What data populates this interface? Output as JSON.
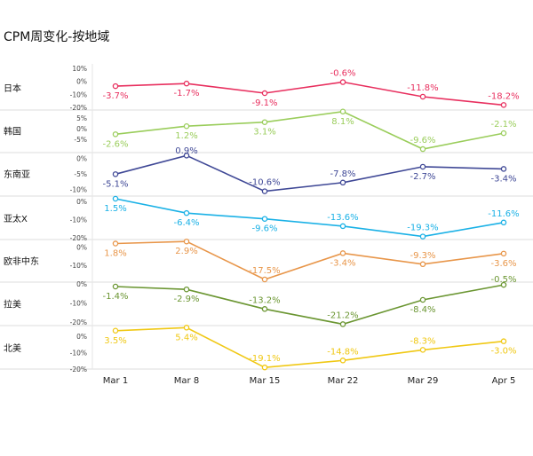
{
  "chart_data": {
    "type": "line",
    "title": "CPM周变化-按地域",
    "categories": [
      "Mar 1",
      "Mar 8",
      "Mar 15",
      "Mar 22",
      "Mar 29",
      "Apr 5"
    ],
    "series": [
      {
        "name": "日本",
        "color": "#e8305f",
        "values": [
          -3.7,
          -1.7,
          -9.1,
          -0.6,
          -11.8,
          -18.2
        ],
        "labels": [
          "-3.7%",
          "-1.7%",
          "-9.1%",
          "-0.6%",
          "-11.8%",
          "-18.2%"
        ],
        "y_ticks": [
          "10%",
          "0%",
          "-10%",
          "-20%"
        ],
        "ylim": [
          -20,
          10
        ],
        "tick_values": [
          10,
          0,
          -10,
          -20
        ]
      },
      {
        "name": "韩国",
        "color": "#9acd5b",
        "values": [
          -2.6,
          1.2,
          3.1,
          8.1,
          -9.6,
          -2.1
        ],
        "labels": [
          "-2.6%",
          "1.2%",
          "3.1%",
          "8.1%",
          "-9.6%",
          "-2.1%"
        ],
        "y_ticks": [
          "5%",
          "0%",
          "-5%"
        ],
        "ylim": [
          -10,
          8
        ],
        "tick_values": [
          5,
          0,
          -5
        ]
      },
      {
        "name": "东南亚",
        "color": "#3f4896",
        "values": [
          -5.1,
          0.9,
          -10.6,
          -7.8,
          -2.7,
          -3.4
        ],
        "labels": [
          "-5.1%",
          "0.9%",
          "-10.6%",
          "-7.8%",
          "-2.7%",
          "-3.4%"
        ],
        "y_ticks": [
          "0%",
          "-5%",
          "-10%"
        ],
        "ylim": [
          -11,
          1
        ],
        "tick_values": [
          0,
          -5,
          -10
        ]
      },
      {
        "name": "亚太X",
        "color": "#1ab1e6",
        "values": [
          1.5,
          -6.4,
          -9.6,
          -13.6,
          -19.3,
          -11.6
        ],
        "labels": [
          "1.5%",
          "-6.4%",
          "-9.6%",
          "-13.6%",
          "-19.3%",
          "-11.6%"
        ],
        "y_ticks": [
          "0%",
          "-10%",
          "-20%"
        ],
        "ylim": [
          -20,
          1.5
        ],
        "tick_values": [
          0,
          -10,
          -20
        ]
      },
      {
        "name": "欧非中东",
        "color": "#e8964a",
        "values": [
          1.8,
          2.9,
          -17.5,
          -3.4,
          -9.3,
          -3.6
        ],
        "labels": [
          "1.8%",
          "2.9%",
          "-17.5%",
          "-3.4%",
          "-9.3%",
          "-3.6%"
        ],
        "y_ticks": [
          "0%",
          "-10%"
        ],
        "ylim": [
          -18,
          3
        ],
        "tick_values": [
          0,
          -10
        ]
      },
      {
        "name": "拉美",
        "color": "#6b9632",
        "values": [
          -1.4,
          -2.9,
          -13.2,
          -21.2,
          -8.4,
          -0.5
        ],
        "labels": [
          "-1.4%",
          "-2.9%",
          "-13.2%",
          "-21.2%",
          "-8.4%",
          "-0.5%"
        ],
        "y_ticks": [
          "0%",
          "-10%",
          "-20%"
        ],
        "ylim": [
          -21,
          0
        ],
        "tick_values": [
          0,
          -10,
          -20
        ]
      },
      {
        "name": "北美",
        "color": "#f0c814",
        "values": [
          3.5,
          5.4,
          -19.1,
          -14.8,
          -8.3,
          -3.0
        ],
        "labels": [
          "3.5%",
          "5.4%",
          "-19.1%",
          "-14.8%",
          "-8.3%",
          "-3.0%"
        ],
        "y_ticks": [
          "0%",
          "-10%",
          "-20%"
        ],
        "ylim": [
          -19,
          5
        ],
        "tick_values": [
          0,
          -10,
          -20
        ]
      }
    ],
    "grid": false,
    "legend": "none"
  }
}
